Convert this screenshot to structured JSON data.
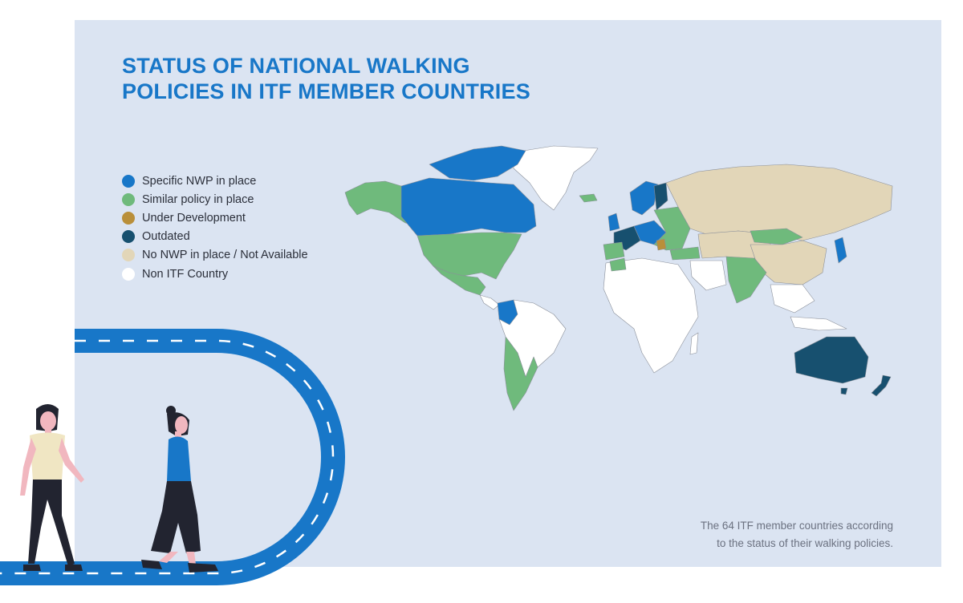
{
  "title": {
    "line1": "STATUS OF NATIONAL WALKING",
    "line2": "POLICIES IN ITF MEMBER COUNTRIES"
  },
  "legend": [
    {
      "label": "Specific NWP in place",
      "color": "#1877c8"
    },
    {
      "label": "Similar policy in place",
      "color": "#6fba7c"
    },
    {
      "label": "Under Development",
      "color": "#b98f3a"
    },
    {
      "label": "Outdated",
      "color": "#17506f"
    },
    {
      "label": "No NWP in place / Not Available",
      "color": "#e2d6b8"
    },
    {
      "label": "Non ITF Country",
      "color": "#ffffff"
    }
  ],
  "caption": {
    "line1": "The 64 ITF member countries according",
    "line2": "to the status of their walking policies."
  }
}
